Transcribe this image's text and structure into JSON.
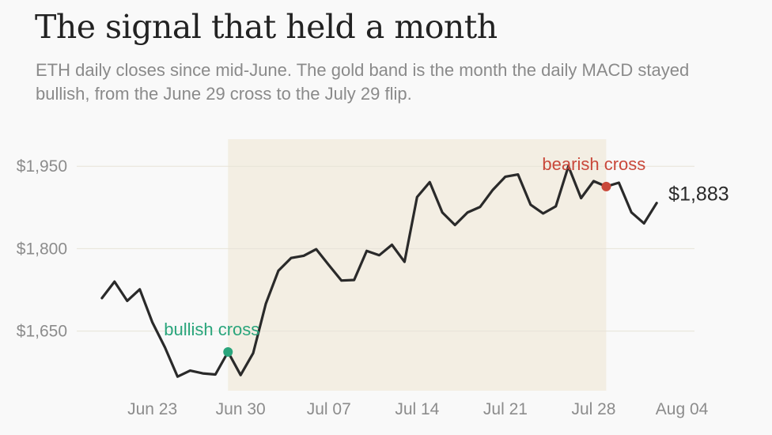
{
  "title": "The signal that held a month",
  "subtitle": "ETH daily closes since mid-June. The gold band is the month the daily MACD stayed bullish, from the June 29 cross to the July 29 flip.",
  "chart_data": {
    "type": "line",
    "series": [
      {
        "dates": [
          "2023-06-19",
          "2023-06-20",
          "2023-06-21",
          "2023-06-22",
          "2023-06-23",
          "2023-06-24",
          "2023-06-25",
          "2023-06-26",
          "2023-06-27",
          "2023-06-28",
          "2023-06-29",
          "2023-06-30",
          "2023-07-01",
          "2023-07-02",
          "2023-07-03",
          "2023-07-04",
          "2023-07-05",
          "2023-07-06",
          "2023-07-07",
          "2023-07-08",
          "2023-07-09",
          "2023-07-10",
          "2023-07-11",
          "2023-07-12",
          "2023-07-13",
          "2023-07-14",
          "2023-07-15",
          "2023-07-16",
          "2023-07-17",
          "2023-07-18",
          "2023-07-19",
          "2023-07-20",
          "2023-07-21",
          "2023-07-22",
          "2023-07-23",
          "2023-07-24",
          "2023-07-25",
          "2023-07-26",
          "2023-07-27",
          "2023-07-28",
          "2023-07-29",
          "2023-07-30",
          "2023-07-31",
          "2023-08-01",
          "2023-08-02"
        ],
        "values": [
          1710,
          1740,
          1705,
          1726,
          1666,
          1620,
          1567,
          1578,
          1573,
          1571,
          1612,
          1570,
          1610,
          1700,
          1760,
          1783,
          1787,
          1799,
          1770,
          1742,
          1743,
          1796,
          1788,
          1807,
          1776,
          1894,
          1921,
          1866,
          1843,
          1866,
          1876,
          1907,
          1931,
          1935,
          1880,
          1864,
          1877,
          1950,
          1892,
          1923,
          1913,
          1920,
          1866,
          1846,
          1883
        ]
      }
    ],
    "x_ticks": [
      "Jun 23",
      "Jun 30",
      "Jul 07",
      "Jul 14",
      "Jul 21",
      "Jul 28",
      "Aug 04"
    ],
    "x_tick_dates": [
      "2023-06-23",
      "2023-06-30",
      "2023-07-07",
      "2023-07-14",
      "2023-07-21",
      "2023-07-28",
      "2023-08-04"
    ],
    "x_range": [
      "2023-06-17",
      "2023-08-05"
    ],
    "y_ticks": [
      1650,
      1800,
      1950
    ],
    "y_tick_labels": [
      "$1,650",
      "$1,800",
      "$1,950"
    ],
    "ylim": [
      1540,
      2005
    ],
    "band": {
      "start": "2023-06-29",
      "end": "2023-07-29",
      "color": "#f3eee3"
    },
    "annotations": [
      {
        "label": "bullish cross",
        "date": "2023-06-29",
        "value": 1612,
        "color": "#2aa57c"
      },
      {
        "label": "bearish cross",
        "date": "2023-07-29",
        "value": 1913,
        "color": "#c9483a"
      }
    ],
    "end_label": "$1,883",
    "line_color": "#2a2a2a",
    "grid": true
  }
}
